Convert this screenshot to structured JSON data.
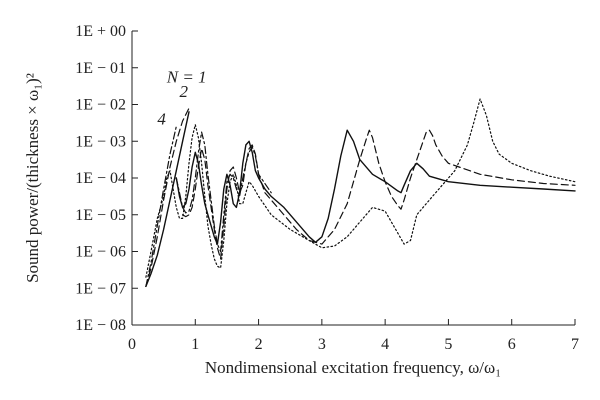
{
  "chart_data": {
    "type": "line",
    "title": "",
    "xlabel": "Nondimensional excitation frequency, ω/ω₁",
    "ylabel": "Sound power/(thickness × ω₁)²",
    "xlim": [
      0,
      7
    ],
    "ylim": [
      -8,
      0
    ],
    "y_scale": "log10",
    "grid": false,
    "legend": "none (curves labeled inline)",
    "x_ticks": [
      0,
      1,
      2,
      3,
      4,
      5,
      6,
      7
    ],
    "x_tick_labels": [
      "0",
      "1",
      "2",
      "3",
      "4",
      "5",
      "6",
      "7"
    ],
    "y_ticks": [
      0,
      -1,
      -2,
      -3,
      -4,
      -5,
      -6,
      -7,
      -8
    ],
    "y_tick_labels": [
      "1E + 00",
      "1E − 01",
      "1E − 02",
      "1E − 03",
      "1E − 04",
      "1E − 05",
      "1E − 06",
      "1E − 07",
      "1E − 08"
    ],
    "curve_labels": [
      {
        "text": "N = 1",
        "x": 0.55,
        "y": -1.4
      },
      {
        "text": "2",
        "x": 0.75,
        "y": -1.8
      },
      {
        "text": "4",
        "x": 0.4,
        "y": -2.55
      }
    ],
    "series": [
      {
        "name": "N = 1",
        "style": "solid",
        "segments": [
          {
            "x": [
              0.22,
              0.3,
              0.4,
              0.5,
              0.6,
              0.7,
              0.8,
              0.9
            ],
            "y": [
              -6.95,
              -6.6,
              -6.1,
              -5.4,
              -4.6,
              -3.8,
              -3.0,
              -2.2
            ]
          },
          {
            "x": [
              0.7,
              0.75,
              0.8,
              0.85,
              0.9,
              0.95,
              1.0,
              1.05,
              1.1,
              1.15,
              1.2,
              1.25,
              1.3,
              1.35,
              1.4,
              1.45,
              1.5,
              1.55,
              1.6,
              1.65,
              1.7,
              1.75,
              1.8,
              1.85,
              1.9,
              1.95,
              2.0,
              2.1,
              2.2,
              2.4,
              2.6,
              2.8,
              2.9,
              3.0,
              3.1,
              3.2,
              3.3,
              3.4,
              3.5,
              3.6,
              3.8,
              4.0,
              4.2,
              4.25,
              4.3,
              4.4,
              4.5,
              4.6,
              4.7,
              5.0,
              5.5,
              6.0,
              6.5,
              7.0
            ],
            "y": [
              -4.0,
              -4.5,
              -4.8,
              -4.7,
              -4.3,
              -3.7,
              -3.3,
              -3.6,
              -4.2,
              -4.7,
              -5.0,
              -5.3,
              -5.6,
              -5.8,
              -5.2,
              -4.3,
              -3.9,
              -4.2,
              -4.7,
              -4.8,
              -4.4,
              -3.6,
              -3.1,
              -3.0,
              -3.3,
              -3.8,
              -4.0,
              -4.3,
              -4.5,
              -4.8,
              -5.2,
              -5.6,
              -5.75,
              -5.6,
              -5.1,
              -4.3,
              -3.4,
              -2.7,
              -3.0,
              -3.5,
              -3.9,
              -4.1,
              -4.35,
              -4.4,
              -4.2,
              -3.8,
              -3.6,
              -3.75,
              -3.95,
              -4.1,
              -4.2,
              -4.25,
              -4.3,
              -4.35
            ]
          }
        ]
      },
      {
        "name": "N = 2",
        "style": "dashed",
        "segments": [
          {
            "x": [
              0.22,
              0.3,
              0.4,
              0.5,
              0.6,
              0.7,
              0.8,
              0.9
            ],
            "y": [
              -6.95,
              -6.45,
              -5.6,
              -4.6,
              -3.7,
              -3.0,
              -2.45,
              -2.1
            ]
          },
          {
            "x": [
              0.8,
              0.85,
              0.9,
              0.95,
              1.0,
              1.05,
              1.1,
              1.15,
              1.2,
              1.25,
              1.3,
              1.35,
              1.4,
              1.45,
              1.5,
              1.55,
              1.6,
              1.65,
              1.7,
              1.75,
              1.8,
              1.85,
              1.9,
              1.95,
              2.0,
              2.1,
              2.2,
              2.4,
              2.6,
              2.8,
              3.0,
              3.2,
              3.4,
              3.5,
              3.6,
              3.7,
              3.75,
              3.8,
              3.9,
              4.0,
              4.1,
              4.2,
              4.25,
              4.3,
              4.4,
              4.5,
              4.6,
              4.65,
              4.7,
              4.75,
              4.8,
              4.9,
              5.0,
              5.5,
              6.0,
              6.5,
              7.0
            ],
            "y": [
              -5.0,
              -5.05,
              -5.0,
              -4.8,
              -4.3,
              -3.7,
              -3.2,
              -3.5,
              -4.2,
              -4.8,
              -5.4,
              -5.9,
              -6.2,
              -5.3,
              -4.3,
              -3.8,
              -3.7,
              -4.0,
              -4.4,
              -4.2,
              -3.6,
              -3.2,
              -3.1,
              -3.35,
              -3.9,
              -4.4,
              -4.6,
              -5.0,
              -5.4,
              -5.7,
              -5.8,
              -5.4,
              -4.7,
              -4.1,
              -3.5,
              -2.95,
              -2.7,
              -2.9,
              -3.6,
              -4.1,
              -4.5,
              -4.75,
              -4.85,
              -4.6,
              -4.0,
              -3.5,
              -3.0,
              -2.75,
              -2.7,
              -2.85,
              -3.1,
              -3.4,
              -3.6,
              -3.9,
              -4.05,
              -4.15,
              -4.2
            ]
          }
        ]
      },
      {
        "name": "N = 4",
        "style": "dash-dot",
        "segments": [
          {
            "x": [
              0.22,
              0.3,
              0.4,
              0.5,
              0.6,
              0.7
            ],
            "y": [
              -6.95,
              -6.3,
              -5.3,
              -4.3,
              -3.35,
              -2.6
            ]
          },
          {
            "x": [
              0.7,
              0.75,
              0.8,
              0.85,
              0.9,
              0.95,
              1.0,
              1.05,
              1.1,
              1.15,
              1.2,
              1.25,
              1.3,
              1.35,
              1.4,
              1.45,
              1.5,
              1.55,
              1.6,
              1.65,
              1.7,
              1.75,
              1.8,
              1.85,
              1.9,
              1.95,
              2.0,
              2.2
            ],
            "y": [
              -4.0,
              -4.4,
              -4.8,
              -4.95,
              -4.9,
              -4.6,
              -4.0,
              -3.3,
              -2.75,
              -3.1,
              -3.9,
              -4.6,
              -5.3,
              -5.8,
              -6.0,
              -5.0,
              -4.1,
              -3.9,
              -4.0,
              -4.3,
              -4.5,
              -4.0,
              -3.6,
              -3.3,
              -3.15,
              -3.4,
              -3.9,
              -4.4
            ]
          }
        ]
      },
      {
        "name": "dotted",
        "style": "dotted",
        "segments": [
          {
            "x": [
              0.22,
              0.3,
              0.4,
              0.5,
              0.55,
              0.6,
              0.65,
              0.7,
              0.75,
              0.8,
              0.85,
              0.9,
              0.95,
              1.0,
              1.05,
              1.1,
              1.15,
              1.2,
              1.25,
              1.3,
              1.35,
              1.4,
              1.45,
              1.5,
              1.55,
              1.6,
              1.65,
              1.7,
              1.75,
              1.8,
              1.85,
              1.9,
              2.0,
              2.2,
              2.5,
              2.8,
              3.0,
              3.2,
              3.4,
              3.6,
              3.8,
              4.0,
              4.2,
              4.3,
              4.4,
              4.5,
              4.7,
              4.9,
              5.1,
              5.3,
              5.4,
              5.5,
              5.6,
              5.7,
              5.8,
              6.0,
              6.3,
              6.6,
              7.0
            ],
            "y": [
              -6.7,
              -6.0,
              -5.1,
              -4.5,
              -4.0,
              -3.8,
              -4.3,
              -4.8,
              -5.1,
              -5.1,
              -4.5,
              -3.6,
              -2.9,
              -2.55,
              -2.9,
              -3.6,
              -4.5,
              -5.3,
              -5.8,
              -6.2,
              -6.4,
              -6.45,
              -5.7,
              -4.7,
              -4.1,
              -3.9,
              -4.2,
              -4.7,
              -4.7,
              -4.4,
              -4.1,
              -4.2,
              -4.5,
              -5.0,
              -5.4,
              -5.7,
              -5.9,
              -5.85,
              -5.6,
              -5.2,
              -4.8,
              -4.9,
              -5.5,
              -5.8,
              -5.7,
              -5.0,
              -4.6,
              -4.2,
              -3.8,
              -3.1,
              -2.5,
              -1.85,
              -2.3,
              -3.0,
              -3.35,
              -3.6,
              -3.8,
              -3.95,
              -4.1
            ]
          }
        ]
      }
    ]
  }
}
